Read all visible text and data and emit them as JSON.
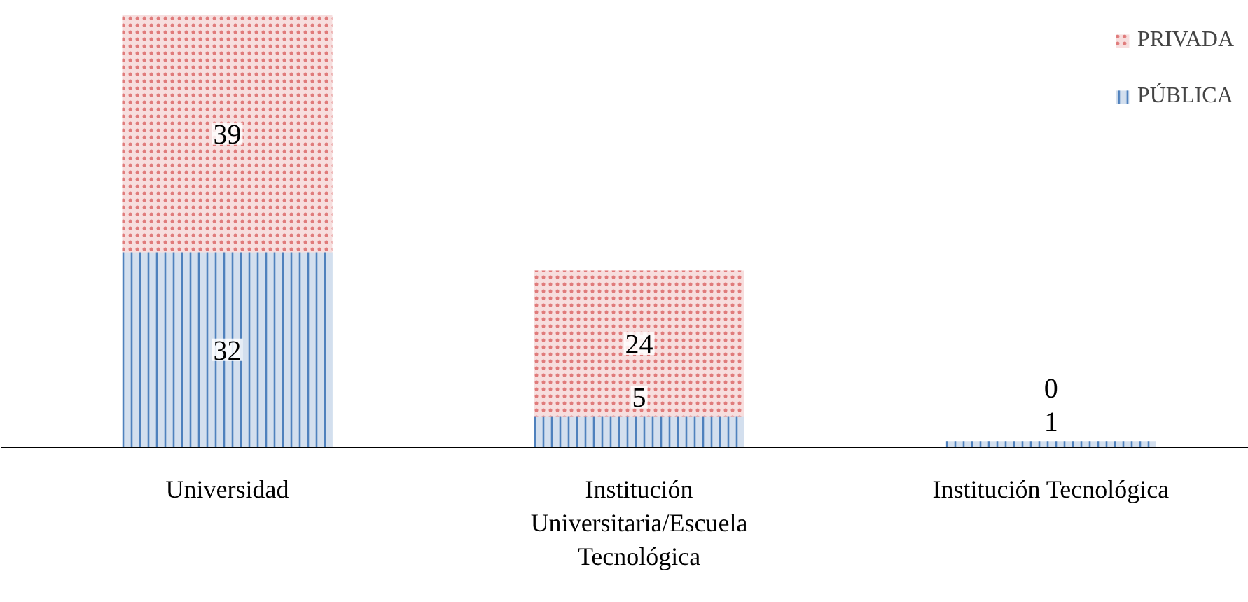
{
  "chart_data": {
    "type": "bar",
    "stacked": true,
    "data_labels": true,
    "legend": "top right",
    "grid": false,
    "categories": [
      "Universidad",
      "Institución Universitaria/Escuela Tecnológica",
      "Institución Tecnológica"
    ],
    "series": [
      {
        "name": "PÚBLICA",
        "color": "#4f81bd",
        "values": [
          32,
          5,
          1
        ]
      },
      {
        "name": "PRIVADA",
        "color": "#e07b7b",
        "values": [
          39,
          24,
          0
        ]
      }
    ]
  }
}
